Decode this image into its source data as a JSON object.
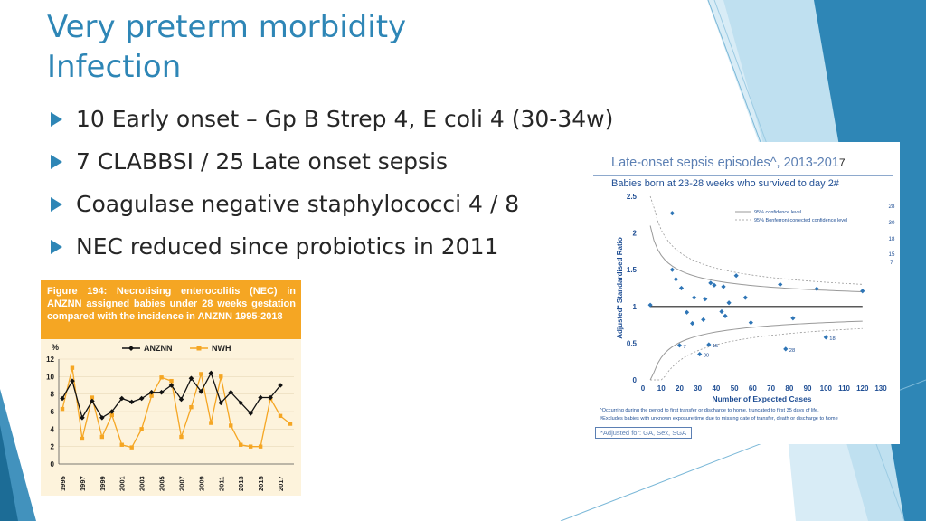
{
  "slide": {
    "title_line1": "Very preterm morbidity",
    "title_line2": "Infection",
    "bullets": [
      "10 Early onset – Gp B Strep 4, E coli 4 (30-34w)",
      "7 CLABBSI  / 25 Late onset sepsis",
      "Coagulase negative staphylococci 4  / 8",
      "NEC reduced since probiotics in 2011"
    ],
    "accent_color": "#2e86b6",
    "bullet_icon": "triangle-right-icon"
  },
  "nec_figure": {
    "caption": "Figure 194: Necrotising enterocolitis (NEC) in ANZNN assigned babies under 28 weeks gestation compared with the incidence in ANZNN 1995-2018",
    "header_color": "#f5a623",
    "chart_data": {
      "type": "line",
      "title": "",
      "ylabel": "%",
      "xlabel": "",
      "ylim": [
        0,
        12
      ],
      "yticks": [
        0,
        2,
        4,
        6,
        8,
        10,
        12
      ],
      "x": [
        1995,
        1996,
        1997,
        1998,
        1999,
        2000,
        2001,
        2002,
        2003,
        2004,
        2005,
        2006,
        2007,
        2008,
        2009,
        2010,
        2011,
        2012,
        2013,
        2014,
        2015,
        2016,
        2017,
        2018
      ],
      "xtick_labels": [
        "1995",
        "1997",
        "1999",
        "2001",
        "2003",
        "2005",
        "2007",
        "2009",
        "2011",
        "2013",
        "2015",
        "2017"
      ],
      "legend": "top",
      "series": [
        {
          "name": "ANZNN",
          "color": "#111111",
          "marker": "diamond",
          "values": [
            7.5,
            9.5,
            5.3,
            7.2,
            5.3,
            6.0,
            7.5,
            7.1,
            7.5,
            8.2,
            8.2,
            9.0,
            7.4,
            9.8,
            8.3,
            10.4,
            7.0,
            8.2,
            7.0,
            5.8,
            7.6,
            7.6,
            9.0,
            null
          ]
        },
        {
          "name": "NWH",
          "color": "#f5a623",
          "marker": "square",
          "values": [
            6.3,
            11.0,
            2.9,
            7.6,
            3.1,
            5.6,
            2.2,
            1.9,
            4.0,
            7.8,
            9.9,
            9.5,
            3.1,
            6.5,
            10.3,
            4.7,
            10.0,
            4.4,
            2.2,
            2.0,
            2.0,
            7.5,
            5.5,
            4.6
          ]
        }
      ]
    }
  },
  "los_figure": {
    "title": "Late-onset sepsis episodes^, 2013-201",
    "title_overlap": "7",
    "subtitle": "Babies born at 23-28 weeks who survived to day 2#",
    "footnote1": "^Occurring during the period to first transfer or discharge to home, truncated to first 35 days of life.",
    "footnote2": "#Excludes babies with unknown exposure time due to missing date of transfer, death or discharge to home",
    "adjusted_note": "*Adjusted for: GA, Sex, SGA",
    "chart_data": {
      "type": "scatter",
      "title": "",
      "xlabel": "Number of Expected Cases",
      "ylabel": "Adjusted* Standardised Ratio",
      "xlim": [
        0,
        130
      ],
      "ylim": [
        0,
        2.5
      ],
      "xticks": [
        0,
        10,
        20,
        30,
        40,
        50,
        60,
        70,
        80,
        90,
        100,
        110,
        120,
        130
      ],
      "yticks": [
        0,
        0.5,
        1,
        1.5,
        2,
        2.5
      ],
      "legend": [
        "95% confidence level",
        "95% Bonferroni corrected confidence level"
      ],
      "reference_line": 1,
      "point_color": "#2e75b6",
      "points": [
        {
          "x": 4,
          "y": 1.02
        },
        {
          "x": 16,
          "y": 2.27
        },
        {
          "x": 16,
          "y": 1.5
        },
        {
          "x": 18,
          "y": 1.37
        },
        {
          "x": 20,
          "y": 0.47,
          "label": "7"
        },
        {
          "x": 21,
          "y": 1.25
        },
        {
          "x": 24,
          "y": 0.92
        },
        {
          "x": 27,
          "y": 0.77
        },
        {
          "x": 28,
          "y": 1.12
        },
        {
          "x": 31,
          "y": 0.35,
          "label": "30"
        },
        {
          "x": 33,
          "y": 0.82
        },
        {
          "x": 34,
          "y": 1.1
        },
        {
          "x": 36,
          "y": 0.48,
          "label": "15"
        },
        {
          "x": 37,
          "y": 1.32
        },
        {
          "x": 39,
          "y": 1.29
        },
        {
          "x": 43,
          "y": 0.93
        },
        {
          "x": 44,
          "y": 1.27
        },
        {
          "x": 45,
          "y": 0.87
        },
        {
          "x": 47,
          "y": 1.05
        },
        {
          "x": 51,
          "y": 1.42
        },
        {
          "x": 56,
          "y": 1.12
        },
        {
          "x": 59,
          "y": 0.78
        },
        {
          "x": 75,
          "y": 1.3
        },
        {
          "x": 78,
          "y": 0.42,
          "label": "28"
        },
        {
          "x": 82,
          "y": 0.84
        },
        {
          "x": 95,
          "y": 1.24
        },
        {
          "x": 100,
          "y": 0.58,
          "label": "18"
        },
        {
          "x": 120,
          "y": 1.21
        }
      ],
      "side_labels": [
        "28",
        "30",
        "18",
        "15",
        "7"
      ]
    }
  }
}
